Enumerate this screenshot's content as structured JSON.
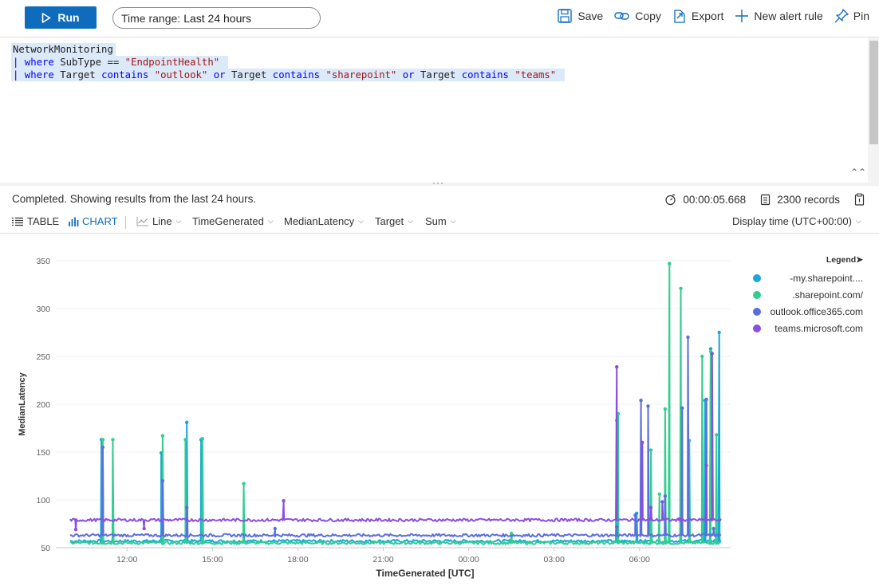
{
  "toolbar": {
    "run_label": "Run",
    "time_range_prefix": "Time range:",
    "time_range_value": "Last 24 hours",
    "save_label": "Save",
    "copy_label": "Copy",
    "export_label": "Export",
    "alert_label": "New alert rule",
    "pin_label": "Pin"
  },
  "query": {
    "line1": "NetworkMonitoring",
    "line2_kw": "| where",
    "line2_rest": " SubType == ",
    "line2_str": "\"EndpointHealth\"",
    "line3_kw1": "| where",
    "line3_a": " Target ",
    "line3_kw2": "contains",
    "line3_s1": "\"outlook\"",
    "line3_or1": "or",
    "line3_b": " Target ",
    "line3_kw3": "contains",
    "line3_s2": "\"sharepoint\"",
    "line3_or2": "or",
    "line3_c": " Target ",
    "line3_kw4": "contains",
    "line3_s3": "\"teams\""
  },
  "results": {
    "status": "Completed. Showing results from the last 24 hours.",
    "duration": "00:00:05.668",
    "records": "2300 records"
  },
  "view": {
    "table_label": "TABLE",
    "chart_label": "CHART",
    "chart_type": "Line",
    "x_field": "TimeGenerated",
    "y_field": "MedianLatency",
    "split_field": "Target",
    "aggregation": "Sum",
    "display_time": "Display time (UTC+00:00)"
  },
  "legend": {
    "title": "Legend",
    "items": [
      {
        "label": "-my.sharepoint....",
        "color": "#1aa6d9"
      },
      {
        "label": ".sharepoint.com/",
        "color": "#2fcf8f"
      },
      {
        "label": "outlook.office365.com",
        "color": "#5b6ee0"
      },
      {
        "label": "teams.microsoft.com",
        "color": "#8b4fe0"
      }
    ]
  },
  "chart_data": {
    "type": "line",
    "xlabel": "TimeGenerated [UTC]",
    "ylabel": "MedianLatency",
    "ylim": [
      50,
      350
    ],
    "yticks": [
      50,
      100,
      150,
      200,
      250,
      300,
      350
    ],
    "xtick_labels": [
      "12:00",
      "15:00",
      "18:00",
      "21:00",
      "00:00",
      "03:00",
      "06:00"
    ],
    "xtick_hours": [
      12,
      15,
      18,
      21,
      24,
      27,
      30
    ],
    "xlim_hours": [
      9.5,
      33.2
    ],
    "grid": "horizontal",
    "legend_position": "right",
    "series": [
      {
        "name": "-my.sharepoint....",
        "color": "#1aa6d9",
        "baseline": 57,
        "spikes": [
          [
            11.1,
            163
          ],
          [
            13.2,
            149
          ],
          [
            14.1,
            181
          ],
          [
            14.6,
            163
          ],
          [
            29.2,
            183
          ],
          [
            29.9,
            86
          ],
          [
            32.3,
            204
          ],
          [
            32.5,
            258
          ],
          [
            32.8,
            275
          ]
        ]
      },
      {
        "name": ".sharepoint.com/",
        "color": "#2fcf8f",
        "baseline": 55,
        "spikes": [
          [
            11.15,
            163
          ],
          [
            11.5,
            163
          ],
          [
            13.25,
            167
          ],
          [
            14.05,
            163
          ],
          [
            14.65,
            164
          ],
          [
            16.1,
            117
          ],
          [
            23.0,
            55
          ],
          [
            25.5,
            65
          ],
          [
            29.25,
            190
          ],
          [
            30.4,
            152
          ],
          [
            30.7,
            106
          ],
          [
            30.9,
            195
          ],
          [
            31.05,
            347
          ],
          [
            31.45,
            321
          ],
          [
            31.75,
            162
          ],
          [
            32.2,
            250
          ],
          [
            32.5,
            255
          ],
          [
            32.7,
            168
          ]
        ]
      },
      {
        "name": "outlook.office365.com",
        "color": "#5b6ee0",
        "baseline": 63,
        "spikes": [
          [
            11.15,
            155
          ],
          [
            13.25,
            120
          ],
          [
            14.1,
            92
          ],
          [
            17.2,
            70
          ],
          [
            29.2,
            72
          ],
          [
            29.85,
            84
          ],
          [
            30.05,
            204
          ],
          [
            30.3,
            198
          ],
          [
            30.9,
            104
          ],
          [
            31.5,
            196
          ],
          [
            31.7,
            270
          ],
          [
            32.35,
            205
          ],
          [
            32.6,
            70
          ]
        ]
      },
      {
        "name": "teams.microsoft.com",
        "color": "#8b4fe0",
        "baseline": 79,
        "spikes": [
          [
            10.2,
            69
          ],
          [
            12.6,
            70
          ],
          [
            17.5,
            99
          ],
          [
            29.2,
            239
          ],
          [
            30.1,
            160
          ],
          [
            30.4,
            92
          ],
          [
            30.8,
            98
          ],
          [
            31.4,
            80
          ],
          [
            32.35,
            136
          ],
          [
            32.55,
            253
          ]
        ]
      }
    ]
  }
}
